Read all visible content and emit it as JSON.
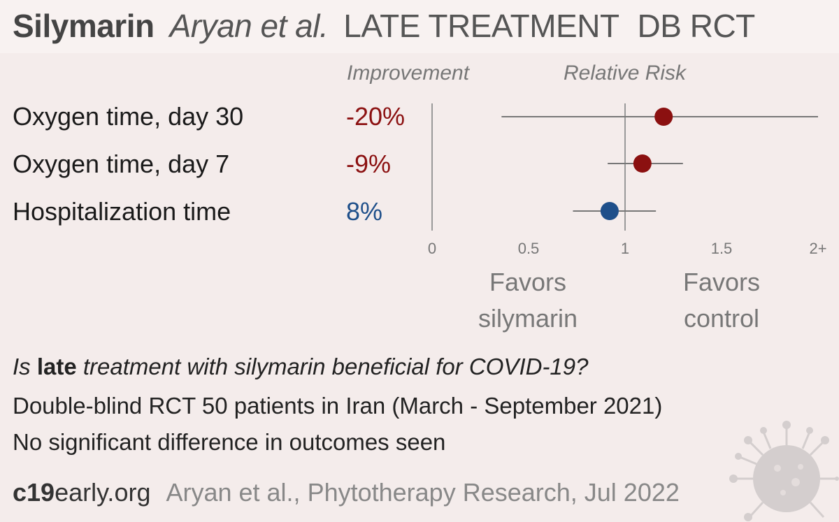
{
  "header": {
    "drug": "Silymarin",
    "authors": "Aryan et al.",
    "category": "LATE TREATMENT",
    "design": "DB RCT"
  },
  "columns": {
    "improvement": "Improvement",
    "relative_risk": "Relative Risk"
  },
  "favors": {
    "left": [
      "Favors",
      "silymarin"
    ],
    "right": [
      "Favors",
      "control"
    ]
  },
  "summary": {
    "question_prefix": "Is ",
    "question_bold": "late",
    "question_suffix": " treatment with silymarin beneficial for COVID-19?",
    "study": "Double-blind RCT 50 patients in Iran (March - September 2021)",
    "conclusion": "No significant difference in outcomes seen"
  },
  "footer": {
    "site_bold": "c19",
    "site_rest": "early.org",
    "reference": "Aryan et al., Phytotherapy Research, Jul 2022"
  },
  "colors": {
    "harm": "#8b1010",
    "benefit": "#1e4f8a",
    "axis": "#999999",
    "background": "#f4eceb"
  },
  "chart_data": {
    "type": "scatter",
    "title": "",
    "xlabel": "Relative Risk",
    "xlim": [
      0,
      2
    ],
    "ticks": [
      {
        "value": 0,
        "label": "0"
      },
      {
        "value": 0.5,
        "label": "0.5"
      },
      {
        "value": 1,
        "label": "1"
      },
      {
        "value": 1.5,
        "label": "1.5"
      },
      {
        "value": 2,
        "label": "2+"
      }
    ],
    "reference_line": 1,
    "rows": [
      {
        "outcome": "Oxygen time, day 30",
        "improvement": "-20%",
        "rr": 1.2,
        "ci_low": 0.36,
        "ci_high": 2.0,
        "color": "#8b1010"
      },
      {
        "outcome": "Oxygen time, day 7",
        "improvement": "-9%",
        "rr": 1.09,
        "ci_low": 0.91,
        "ci_high": 1.3,
        "color": "#8b1010"
      },
      {
        "outcome": "Hospitalization time",
        "improvement": "8%",
        "rr": 0.92,
        "ci_low": 0.73,
        "ci_high": 1.16,
        "color": "#1e4f8a"
      }
    ]
  }
}
